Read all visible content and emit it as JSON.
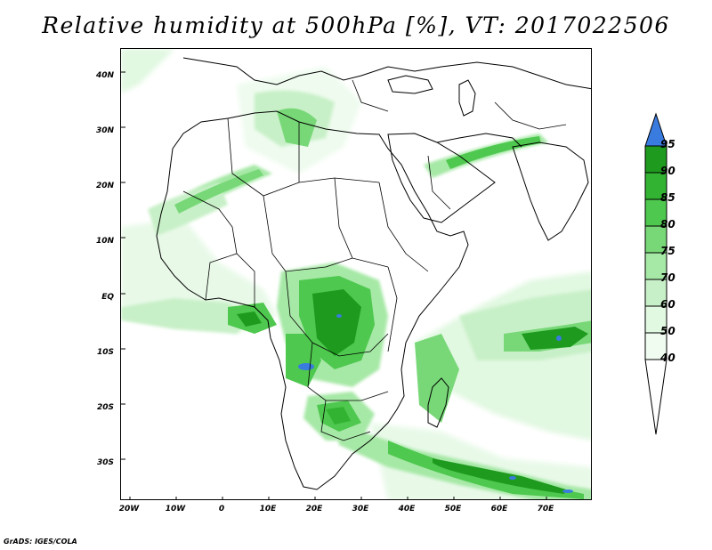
{
  "title": "Relative humidity at 500hPa [%], VT: 2017022506",
  "credit": "GrADS: IGES/COLA",
  "map": {
    "lat_labels": [
      "40N",
      "30N",
      "20N",
      "10N",
      "EQ",
      "10S",
      "20S",
      "30S"
    ],
    "lon_labels": [
      "20W",
      "10W",
      "0",
      "10E",
      "20E",
      "30E",
      "40E",
      "50E",
      "60E",
      "70E"
    ],
    "lon_range": [
      -22,
      80
    ],
    "lat_range": [
      -36,
      45
    ]
  },
  "colorbar": {
    "levels": [
      "95",
      "90",
      "85",
      "80",
      "75",
      "70",
      "60",
      "50",
      "40"
    ],
    "colors": {
      "above_95": "#3a7be0",
      "90_95": "#1e9a1e",
      "85_90": "#32b432",
      "80_85": "#4ec84e",
      "75_80": "#78d878",
      "70_75": "#a6e8a6",
      "60_70": "#c8f0c8",
      "50_60": "#e1f8e1",
      "40_50": "#f0fcf0",
      "below_40": "#ffffff"
    }
  }
}
